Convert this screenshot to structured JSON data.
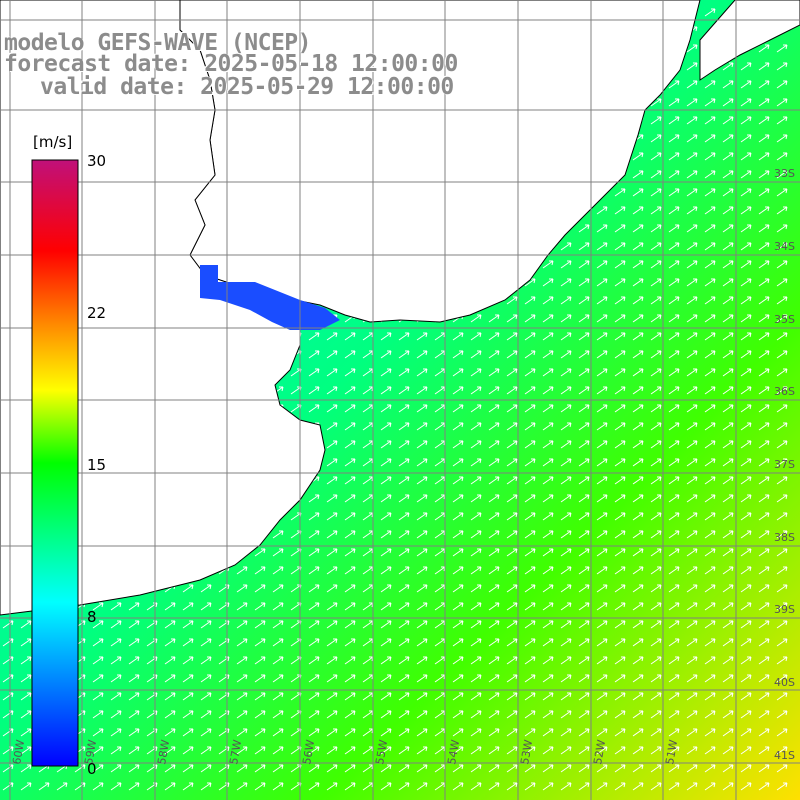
{
  "title": {
    "line1": "modelo GEFS-WAVE (NCEP)",
    "line2": "forecast date: 2025-05-18 12:00:00",
    "line3": "valid date: 2025-05-29 12:00:00"
  },
  "colorbar": {
    "unit": "[m/s]",
    "ticks": [
      "30",
      "22",
      "15",
      "8",
      "0"
    ],
    "min": 0,
    "max": 30,
    "colors": [
      "#0000ff",
      "#00ffff",
      "#00ff00",
      "#ffff00",
      "#ff8800",
      "#ff0000",
      "#c0107a"
    ]
  },
  "latitude_labels": [
    "33S",
    "34S",
    "35S",
    "36S",
    "37S",
    "38S",
    "39S",
    "40S",
    "41S"
  ],
  "longitude_labels": [
    "60W",
    "59W",
    "58W",
    "57W",
    "56W",
    "55W",
    "54W",
    "53W",
    "52W",
    "51W"
  ],
  "map": {
    "land_color": "#ffffff",
    "grid_color": "#808080",
    "coast_color": "#000000",
    "arrow_color": "#ffffff",
    "wind_direction": "from south-west toward north-east"
  }
}
